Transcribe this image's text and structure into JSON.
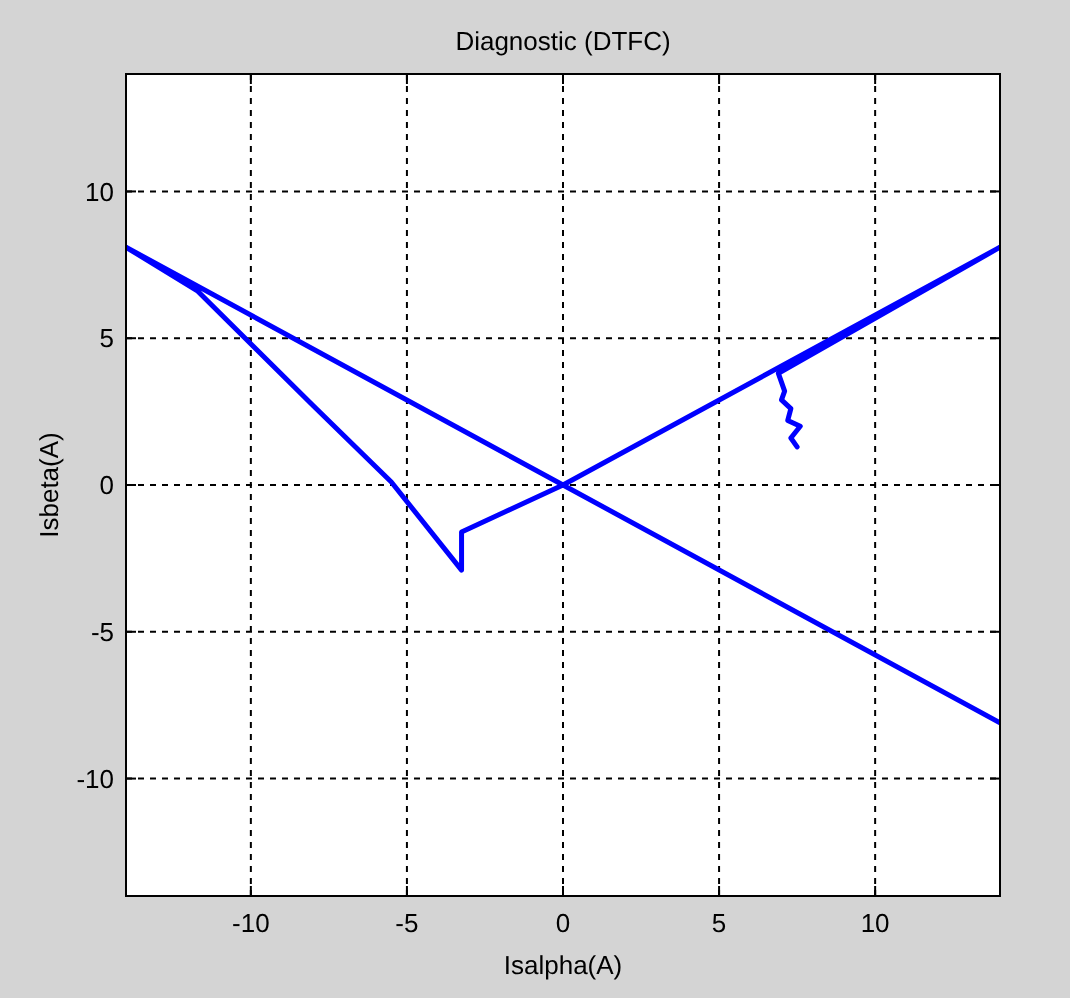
{
  "chart_data": {
    "type": "line",
    "title": "Diagnostic (DTFC)",
    "xlabel": "Isalpha(A)",
    "ylabel": "Isbeta(A)",
    "xlim": [
      -14,
      14
    ],
    "ylim": [
      -14,
      14
    ],
    "xticks": [
      -10,
      -5,
      0,
      5,
      10
    ],
    "yticks": [
      -10,
      -5,
      0,
      5,
      10
    ],
    "grid": true,
    "marker": "none",
    "line_style": "solid",
    "series": [
      {
        "color": "#0000ff",
        "x": [
          7.5,
          7.3,
          7.6,
          7.2,
          7.3,
          7.0,
          7.1,
          6.9,
          14,
          0,
          -14,
          -11.7,
          -8,
          -5.5,
          -3.25,
          -3.25,
          0,
          14
        ],
        "values": [
          1.3,
          1.6,
          2.0,
          2.2,
          2.6,
          2.9,
          3.2,
          3.8,
          8.1,
          0,
          8.1,
          6.6,
          2.7,
          0.1,
          -2.9,
          -1.6,
          0,
          -8.1
        ]
      }
    ]
  }
}
